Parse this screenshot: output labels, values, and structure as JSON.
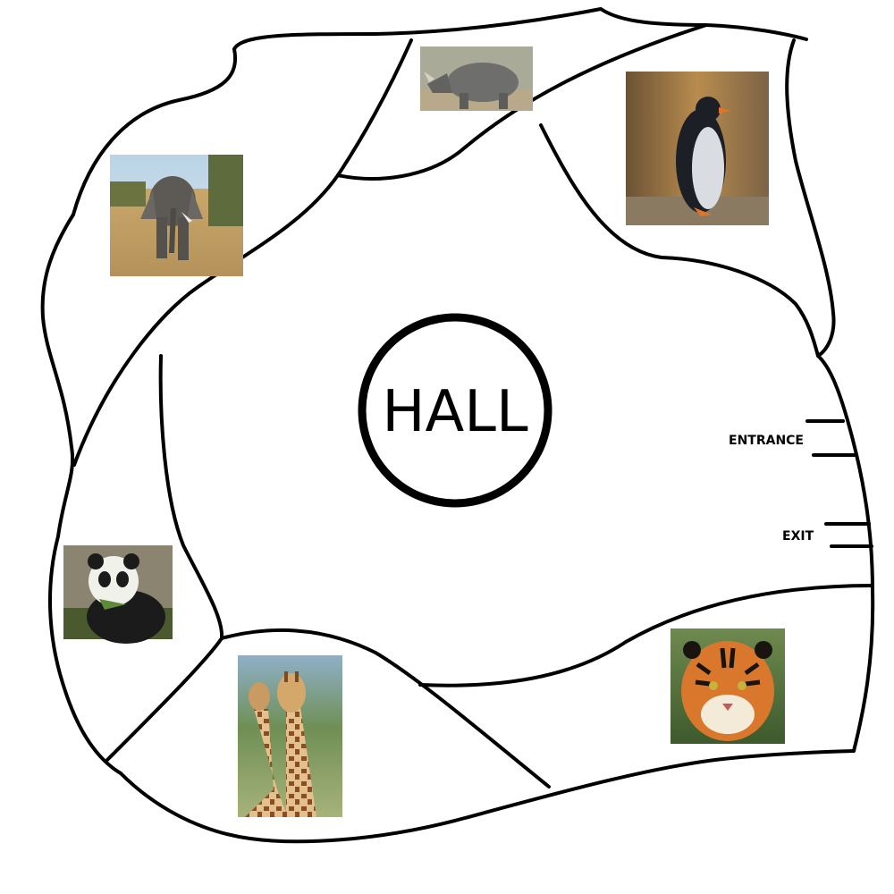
{
  "hall": {
    "label": "HALL"
  },
  "doors": {
    "entrance": "ENTRANCE",
    "exit": "EXIT"
  },
  "enclosures": [
    {
      "animal": "rhinoceros",
      "icon": "rhino-photo"
    },
    {
      "animal": "penguin",
      "icon": "penguin-photo"
    },
    {
      "animal": "elephant",
      "icon": "elephant-photo"
    },
    {
      "animal": "panda",
      "icon": "panda-photo"
    },
    {
      "animal": "giraffe",
      "icon": "giraffe-photo"
    },
    {
      "animal": "tiger",
      "icon": "tiger-photo"
    }
  ],
  "colors": {
    "ink": "#000000",
    "background": "#ffffff"
  }
}
